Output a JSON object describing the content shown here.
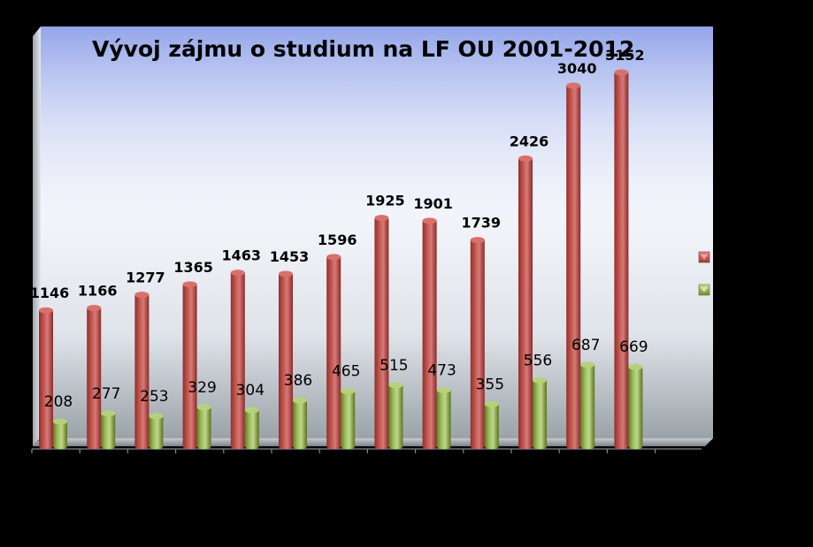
{
  "colors": {
    "red_series": "#c0504d",
    "green_series": "#9bbb59",
    "background": "#000000"
  },
  "chart_data": {
    "type": "bar",
    "title": "Vývoj zájmu o studium na LF OU 2001-2012",
    "xlabel": "",
    "ylabel": "",
    "categories": [
      "",
      "",
      "",
      "",
      "",
      "",
      "",
      "",
      "",
      "",
      "",
      "",
      ""
    ],
    "ylim": [
      0,
      3200
    ],
    "grid": false,
    "legend": "right",
    "series": [
      {
        "values": [
          1146,
          1166,
          1277,
          1365,
          1463,
          1453,
          1596,
          1925,
          1901,
          1739,
          2426,
          3040,
          3152
        ],
        "color": "#c0504d",
        "labels_bold": true
      },
      {
        "values": [
          208,
          277,
          253,
          329,
          304,
          386,
          465,
          515,
          473,
          355,
          556,
          687,
          669
        ],
        "color": "#9bbb59",
        "labels_bold": false
      }
    ]
  }
}
